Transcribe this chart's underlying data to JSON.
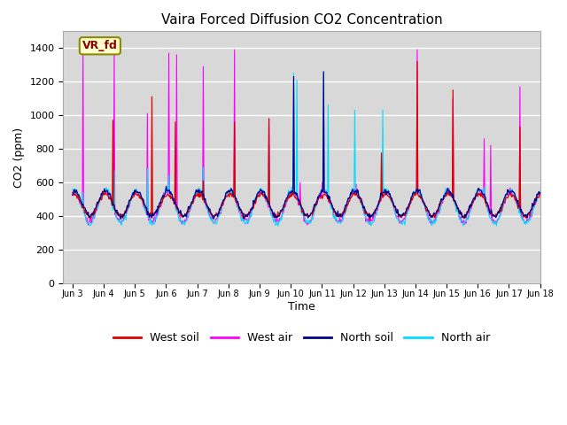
{
  "title": "Vaira Forced Diffusion CO2 Concentration",
  "xlabel": "Time",
  "ylabel": "CO2 (ppm)",
  "ylim": [
    0,
    1500
  ],
  "yticks": [
    0,
    200,
    400,
    600,
    800,
    1000,
    1200,
    1400
  ],
  "bg_color": "#d8d8d8",
  "fig_color": "#ffffff",
  "label_box": "VR_fd",
  "series": {
    "west_soil": {
      "color": "#dd0000",
      "label": "West soil"
    },
    "west_air": {
      "color": "#ff00ff",
      "label": "West air"
    },
    "north_soil": {
      "color": "#000088",
      "label": "North soil"
    },
    "north_air": {
      "color": "#00ddff",
      "label": "North air"
    }
  },
  "xtick_labels": [
    "Jun 3",
    "Jun 4",
    "Jun 5",
    "Jun 6",
    "Jun 7",
    "Jun 8",
    "Jun 9",
    "Jun 10",
    "Jun 11",
    "Jun 12",
    "Jun 13",
    "Jun 14",
    "Jun 15",
    "Jun 16",
    "Jun 17",
    "Jun 18"
  ],
  "n_days": 15,
  "pts_per_day": 48,
  "start_day": 3
}
